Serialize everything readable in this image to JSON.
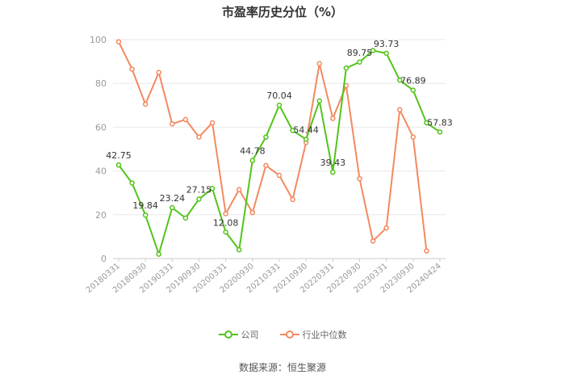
{
  "chart_data": {
    "type": "line",
    "title": "市盈率历史分位（%）",
    "xlabel": "",
    "ylabel": "",
    "ylim": [
      0,
      100
    ],
    "yticks": [
      0,
      20,
      40,
      60,
      80,
      100
    ],
    "grid": true,
    "legend_position": "bottom",
    "x_tick_labels": [
      "20180331",
      "20180930",
      "20190331",
      "20190930",
      "20200331",
      "20200930",
      "20210331",
      "20210930",
      "20220331",
      "20220930",
      "20230331",
      "20230930",
      "20240424"
    ],
    "series": [
      {
        "name": "公司",
        "color": "#52c41a",
        "values": [
          42.75,
          34.5,
          19.84,
          2.0,
          23.24,
          18.5,
          27.15,
          32.0,
          12.08,
          4.0,
          44.78,
          55.5,
          70.04,
          58.5,
          54.44,
          72.0,
          39.43,
          87.0,
          89.75,
          95.0,
          93.73,
          81.5,
          76.89,
          62.0,
          57.83
        ],
        "point_labels": [
          "42.75",
          "",
          "19.84",
          "",
          "23.24",
          "",
          "27.15",
          "",
          "12.08",
          "",
          "44.78",
          "",
          "70.04",
          "",
          "54.44",
          "",
          "39.43",
          "",
          "89.75",
          "",
          "93.73",
          "",
          "76.89",
          "",
          "57.83"
        ]
      },
      {
        "name": "行业中位数",
        "color": "#f4895f",
        "values": [
          99.0,
          86.5,
          70.5,
          85.0,
          61.5,
          63.5,
          55.5,
          62.0,
          20.5,
          31.5,
          21.0,
          42.5,
          38.0,
          27.0,
          53.0,
          89.0,
          64.0,
          79.0,
          36.5,
          8.0,
          14.0,
          68.0,
          55.5,
          3.5,
          null
        ]
      }
    ]
  },
  "source_text": "数据来源：恒生聚源"
}
